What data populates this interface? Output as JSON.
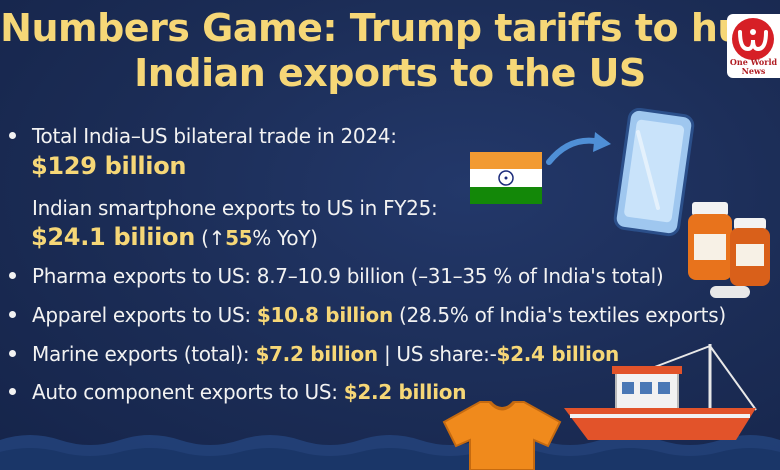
{
  "title": {
    "line1": "Numbers Game: Trump tariffs to hurt",
    "line2": "Indian exports to the US"
  },
  "facts": {
    "bilateral_label": "Total India–US bilateral trade in 2024:",
    "bilateral_value": "$129 billion",
    "smartphone_label": "Indian smartphone exports to US in FY25:",
    "smartphone_value": "$24.1 biliion",
    "smartphone_growth": "(↑",
    "smartphone_growth_pct": "55",
    "smartphone_growth_tail": "% YoY)",
    "pharma": "Pharma exports to US: 8.7–10.9 billion (–31–35 % of India's total)",
    "apparel_label": "Apparel exports to US:",
    "apparel_value": "$10.8 billion",
    "apparel_tail": "(28.5% of India's textiles exports)",
    "marine_label": "Marine exports (total):",
    "marine_value": "$7.2 billion",
    "marine_sep": "| US share:-",
    "marine_us_value": "$2.4 billion",
    "auto_label": "Auto component exports to US:",
    "auto_value": "$2.2 billion"
  },
  "logo": {
    "line1": "One World",
    "line2": "News"
  },
  "colors": {
    "background": "#1d2f57",
    "accent_yellow": "#f6d777",
    "text": "#f2f2f2",
    "saffron": "#f29a32",
    "india_green": "#138808",
    "logo_red": "#d61f26"
  },
  "icons": [
    "india-flag-icon",
    "smartphone-icon",
    "arrow-icon",
    "pill-bottle-icon",
    "fishing-boat-icon",
    "tshirt-icon",
    "logo-icon"
  ]
}
